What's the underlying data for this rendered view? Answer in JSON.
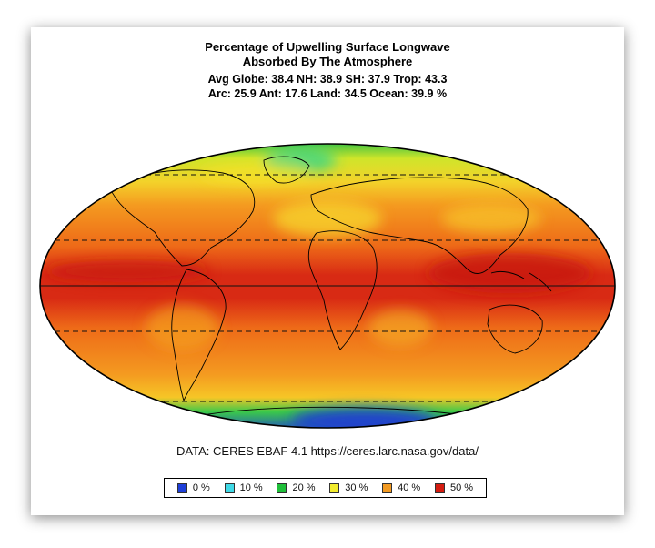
{
  "title": {
    "line1": "Percentage of Upwelling Surface Longwave",
    "line2": "Absorbed By The Atmosphere",
    "stats1": "Avg Globe: 38.4  NH: 38.9  SH: 37.9  Trop: 43.3",
    "stats2": "Arc: 25.9  Ant: 17.6  Land: 34.5 Ocean: 39.9 %"
  },
  "source": "DATA: CERES EBAF 4.1 https://ceres.larc.nasa.gov/data/",
  "legend": [
    {
      "label": "0 %",
      "color": "#1e3fd8"
    },
    {
      "label": "10 %",
      "color": "#3fd9e6"
    },
    {
      "label": "20 %",
      "color": "#1fbf3a"
    },
    {
      "label": "30 %",
      "color": "#f2ec2e"
    },
    {
      "label": "40 %",
      "color": "#f29a22"
    },
    {
      "label": "50 %",
      "color": "#d41c10"
    }
  ],
  "colors": {
    "base": "#f07a1c",
    "tropics": "#d62a14",
    "arctic": "#2fbf45",
    "antarctic": "#2244d0",
    "coast": "#000000"
  }
}
